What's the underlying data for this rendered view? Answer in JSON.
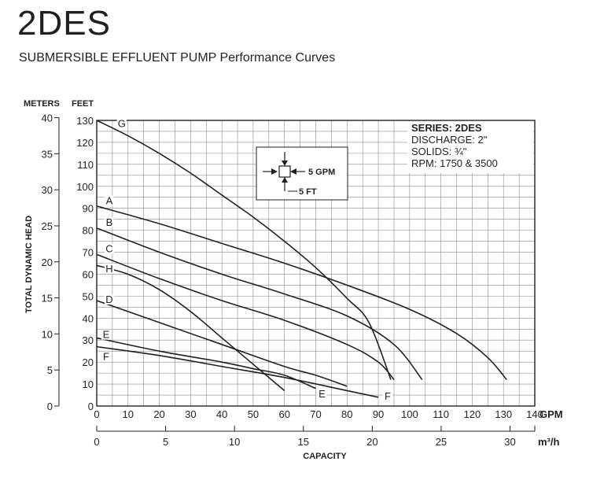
{
  "header": {
    "title": "2DES",
    "subtitle": "SUBMERSIBLE EFFLUENT PUMP Performance Curves"
  },
  "info_box": {
    "lines": [
      "SERIES: 2DES",
      "DISCHARGE: 2\"",
      "SOLIDS: ¾\"",
      "RPM: 1750 & 3500"
    ]
  },
  "grid_legend": {
    "gpm_label": "5 GPM",
    "ft_label": "5 FT"
  },
  "chart_data": {
    "type": "line",
    "xlabel": "CAPACITY",
    "ylabel": "TOTAL DYNAMIC HEAD",
    "x_unit_primary": "GPM",
    "x_unit_secondary": "m³/h",
    "y_unit_left": "METERS",
    "y_unit_right": "FEET",
    "xlim": [
      0,
      140
    ],
    "ylim": [
      0,
      130
    ],
    "grid": true,
    "x_ticks_gpm": [
      0,
      10,
      20,
      30,
      40,
      50,
      60,
      70,
      80,
      90,
      100,
      110,
      120,
      130,
      140
    ],
    "x_ticks_m3h": [
      0,
      5,
      10,
      15,
      20,
      25,
      30
    ],
    "y_ticks_feet": [
      0,
      10,
      20,
      30,
      40,
      50,
      60,
      70,
      80,
      90,
      100,
      110,
      120,
      130
    ],
    "y_ticks_meters": [
      0,
      5,
      10,
      15,
      20,
      25,
      30,
      35,
      40
    ],
    "series": [
      {
        "name": "G",
        "x": [
          0,
          10,
          20,
          30,
          40,
          50,
          60,
          70,
          80,
          87,
          94
        ],
        "y": [
          130,
          123,
          115,
          106,
          96,
          86,
          75,
          63,
          49,
          38,
          12
        ]
      },
      {
        "name": "A",
        "x": [
          0,
          20,
          40,
          60,
          80,
          100,
          115,
          125,
          131
        ],
        "y": [
          91,
          83,
          74,
          65,
          55,
          44,
          33,
          22,
          12
        ]
      },
      {
        "name": "B",
        "x": [
          0,
          20,
          40,
          60,
          80,
          95,
          104
        ],
        "y": [
          81,
          70,
          60,
          51,
          41,
          28,
          12
        ]
      },
      {
        "name": "C",
        "x": [
          0,
          20,
          40,
          60,
          80,
          90,
          95
        ],
        "y": [
          69,
          58,
          48,
          39,
          28,
          20,
          12
        ]
      },
      {
        "name": "H",
        "x": [
          0,
          10,
          20,
          30,
          40,
          50,
          60
        ],
        "y": [
          64,
          60,
          53,
          43,
          31,
          19,
          7
        ]
      },
      {
        "name": "D",
        "x": [
          0,
          20,
          40,
          60,
          70,
          80
        ],
        "y": [
          48,
          38,
          28,
          18,
          14,
          9
        ]
      },
      {
        "name": "E",
        "x": [
          0,
          20,
          40,
          50,
          60,
          70
        ],
        "y": [
          31,
          25,
          20,
          17,
          14,
          8
        ]
      },
      {
        "name": "F",
        "x": [
          0,
          20,
          40,
          60,
          80,
          90
        ],
        "y": [
          27,
          23,
          18,
          13,
          7,
          4
        ]
      }
    ]
  }
}
